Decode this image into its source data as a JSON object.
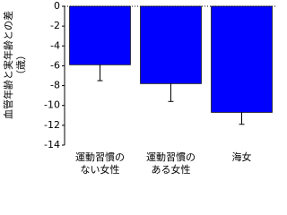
{
  "chart_data": {
    "type": "bar",
    "y_label_lines": [
      "血管年齢と実年齢との差",
      "（歳）"
    ],
    "categories": [
      [
        "運動習慣の",
        "ない女性"
      ],
      [
        "運動習慣の",
        "ある女性"
      ],
      [
        "海女"
      ]
    ],
    "values": [
      -5.9,
      -7.8,
      -10.7
    ],
    "errors": [
      1.6,
      1.8,
      1.2
    ],
    "color": "#0000ff",
    "ylim": [
      0,
      -14
    ],
    "yticks": [
      0,
      -2,
      -4,
      -6,
      -8,
      -10,
      -12,
      -14
    ]
  }
}
